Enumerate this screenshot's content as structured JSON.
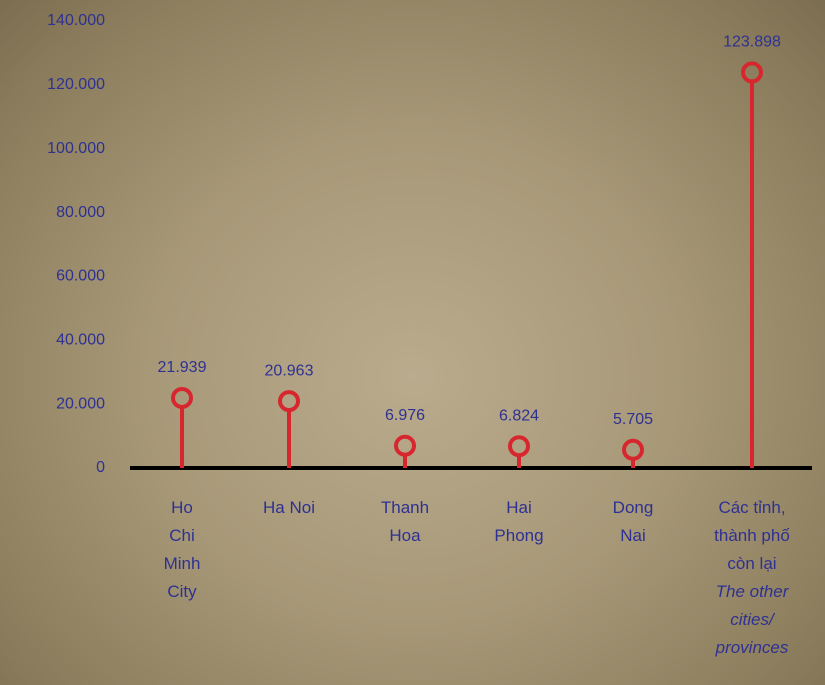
{
  "chart_data": {
    "type": "lollipop",
    "categories": [
      "Ho Chi Minh City",
      "Ha Noi",
      "Thanh Hoa",
      "Hai Phong",
      "Dong Nai",
      "Các tỉnh, thành phố còn lại"
    ],
    "category_english": [
      null,
      null,
      null,
      null,
      null,
      "The other cities/ provinces"
    ],
    "values": [
      21939,
      20963,
      6976,
      6824,
      5705,
      123898
    ],
    "value_labels": [
      "21.939",
      "20.963",
      "6.976",
      "6.824",
      "5.705",
      "123.898"
    ],
    "color": "#d7262e",
    "ylim": [
      0,
      140000
    ],
    "yticks": [
      0,
      {
        "value": 20000,
        "label": "20.000"
      },
      {
        "value": 40000,
        "label": "40.000"
      },
      {
        "value": 60000,
        "label": "60.000"
      },
      {
        "value": 80000,
        "label": "80.000"
      },
      {
        "value": 100000,
        "label": "100.000"
      },
      {
        "value": 120000,
        "label": "120.000"
      },
      {
        "value": 140000,
        "label": "140.000"
      }
    ]
  }
}
